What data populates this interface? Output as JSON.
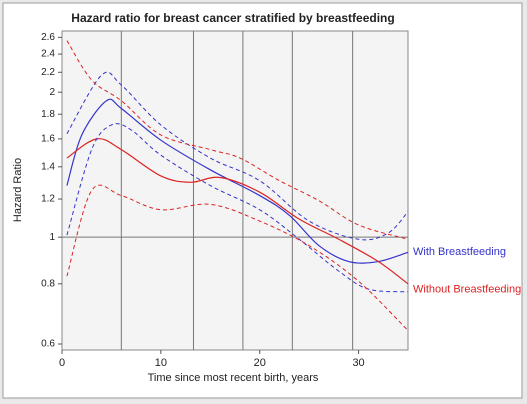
{
  "chart_data": {
    "type": "line",
    "title": "Hazard ratio for breast cancer stratified by breastfeeding",
    "x_label": "Time since most recent birth, years",
    "y_label": "Hazard Ratio",
    "log_y": true,
    "xlim": [
      0,
      35
    ],
    "xticks": [
      0,
      10,
      20,
      30
    ],
    "ylim": [
      0.583,
      2.68
    ],
    "yticks": [
      0.6,
      0.8,
      1,
      1.2,
      1.4,
      1.6,
      1.8,
      2,
      2.2,
      2.4,
      2.6
    ],
    "reference_x": [
      6,
      13.3,
      18.3,
      23.3,
      29.4
    ],
    "reference_y": 1,
    "series": [
      {
        "name": "With Breastfeeding",
        "color": "#3333cc",
        "dashed": false,
        "x": [
          0.5,
          2,
          4.5,
          6,
          10,
          15,
          20,
          23,
          26,
          29,
          32,
          35
        ],
        "values": [
          1.28,
          1.63,
          1.92,
          1.85,
          1.59,
          1.38,
          1.22,
          1.11,
          0.96,
          0.89,
          0.89,
          0.93
        ]
      },
      {
        "name": "Without Breastfeeding",
        "color": "#dd2222",
        "dashed": false,
        "x": [
          0.5,
          3.5,
          6,
          10,
          13,
          16,
          20,
          24,
          28,
          32,
          35
        ],
        "values": [
          1.46,
          1.6,
          1.52,
          1.34,
          1.3,
          1.33,
          1.24,
          1.09,
          0.99,
          0.89,
          0.8
        ]
      },
      {
        "color": "#3333cc",
        "dashed": true,
        "x": [
          0.5,
          4,
          6,
          10,
          15,
          20,
          25,
          30,
          33,
          35
        ],
        "values": [
          1.64,
          2.17,
          2.07,
          1.71,
          1.46,
          1.31,
          1.08,
          0.99,
          1.02,
          1.13
        ]
      },
      {
        "color": "#3333cc",
        "dashed": true,
        "x": [
          0.5,
          3,
          5,
          7,
          10,
          15,
          20,
          24,
          28,
          31,
          35
        ],
        "values": [
          1.01,
          1.52,
          1.71,
          1.67,
          1.48,
          1.28,
          1.14,
          0.99,
          0.85,
          0.78,
          0.77
        ]
      },
      {
        "color": "#dd2222",
        "dashed": true,
        "x": [
          0.5,
          3,
          6,
          10,
          15,
          18,
          22,
          26,
          30,
          35
        ],
        "values": [
          2.56,
          2.12,
          1.92,
          1.63,
          1.52,
          1.46,
          1.31,
          1.19,
          1.06,
          0.99
        ]
      },
      {
        "color": "#dd2222",
        "dashed": true,
        "x": [
          0.5,
          3,
          6,
          10,
          15,
          20,
          25,
          30,
          35
        ],
        "values": [
          0.83,
          1.25,
          1.22,
          1.14,
          1.17,
          1.08,
          0.96,
          0.81,
          0.64
        ]
      }
    ]
  }
}
